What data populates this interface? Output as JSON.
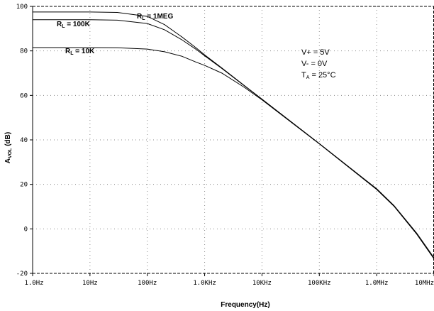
{
  "chart_data": {
    "type": "line",
    "xscale": "log",
    "xlabel": "Frequency(Hz)",
    "ylabel": {
      "main": "A",
      "sub": "VOL",
      "unit": " (dB)"
    },
    "xlim": [
      1,
      10000000
    ],
    "ylim": [
      -20,
      100
    ],
    "grid": true,
    "x_ticks": [
      {
        "value": 1,
        "label": "1.0Hz"
      },
      {
        "value": 10,
        "label": "10Hz"
      },
      {
        "value": 100,
        "label": "100Hz"
      },
      {
        "value": 1000,
        "label": "1.0KHz"
      },
      {
        "value": 10000,
        "label": "10KHz"
      },
      {
        "value": 100000,
        "label": "100KHz"
      },
      {
        "value": 1000000,
        "label": "1.0MHz"
      },
      {
        "value": 10000000,
        "label": "10MHz"
      }
    ],
    "y_ticks": [
      {
        "value": -20,
        "label": "-20"
      },
      {
        "value": 0,
        "label": "0"
      },
      {
        "value": 20,
        "label": "20"
      },
      {
        "value": 40,
        "label": "40"
      },
      {
        "value": 60,
        "label": "60"
      },
      {
        "value": 80,
        "label": "80"
      },
      {
        "value": 100,
        "label": "100"
      }
    ],
    "series": [
      {
        "name": "R_L = 1MEG",
        "label": {
          "main": "R",
          "sub": "L",
          "rest": " = 1MEG"
        },
        "x": [
          1,
          10,
          30,
          100,
          200,
          400,
          700,
          1000,
          2000,
          5000,
          10000,
          100000,
          1000000,
          2000000,
          5000000,
          10000000
        ],
        "y": [
          97.5,
          97.5,
          97.3,
          95.5,
          91.8,
          86.3,
          81.5,
          78.2,
          72.3,
          64.3,
          58.3,
          38.3,
          18.0,
          10.5,
          -2.0,
          -13.0
        ]
      },
      {
        "name": "R_L = 100K",
        "label": {
          "main": "R",
          "sub": "L",
          "rest": " = 100K"
        },
        "x": [
          1,
          10,
          30,
          100,
          200,
          400,
          700,
          1000,
          2000,
          5000,
          10000,
          100000,
          1000000,
          2000000,
          5000000,
          10000000
        ],
        "y": [
          94.0,
          94.0,
          93.8,
          92.3,
          89.5,
          85.0,
          80.8,
          77.8,
          72.1,
          64.2,
          58.3,
          38.3,
          18.0,
          10.5,
          -2.0,
          -13.0
        ]
      },
      {
        "name": "R_L = 10K",
        "label": {
          "main": "R",
          "sub": "L",
          "rest": " = 10K"
        },
        "x": [
          1,
          10,
          30,
          100,
          200,
          400,
          700,
          1000,
          2000,
          5000,
          10000,
          100000,
          1000000,
          2000000,
          5000000,
          10000000
        ],
        "y": [
          81.5,
          81.5,
          81.4,
          80.8,
          79.6,
          77.6,
          75.0,
          73.5,
          70.0,
          63.5,
          58.0,
          38.2,
          17.7,
          10.2,
          -2.4,
          -13.5
        ]
      }
    ],
    "conditions": [
      {
        "main": "V+ = 5V",
        "sub": "",
        "rest": ""
      },
      {
        "main": "V- = 0V",
        "sub": "",
        "rest": ""
      },
      {
        "main": "T",
        "sub": "A",
        "rest": " = 25°C"
      }
    ]
  }
}
